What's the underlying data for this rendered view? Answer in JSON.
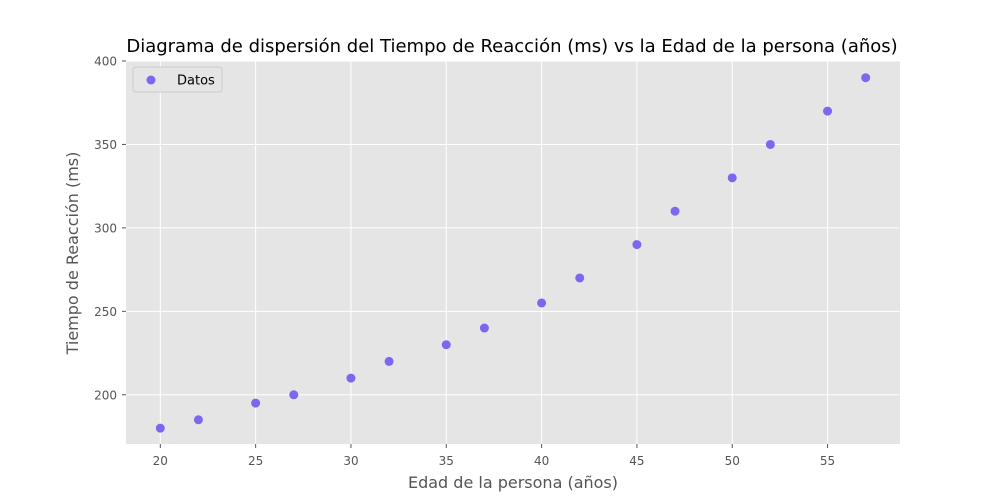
{
  "chart_data": {
    "type": "scatter",
    "title": "Diagrama de dispersión del Tiempo de Reacción (ms) vs la Edad de la persona (años)",
    "xlabel": "Edad de la persona (años)",
    "ylabel": "Tiempo de Reacción (ms)",
    "xlim": [
      18.2,
      58.8
    ],
    "ylim": [
      170.5,
      400
    ],
    "xticks": [
      20,
      25,
      30,
      35,
      40,
      45,
      50,
      55
    ],
    "yticks": [
      200,
      250,
      300,
      350,
      400
    ],
    "grid": true,
    "legend_position": "top-left",
    "series": [
      {
        "name": "Datos",
        "color": "#7B68EE",
        "points": [
          {
            "x": 20,
            "y": 180
          },
          {
            "x": 22,
            "y": 185
          },
          {
            "x": 25,
            "y": 195
          },
          {
            "x": 27,
            "y": 200
          },
          {
            "x": 30,
            "y": 210
          },
          {
            "x": 32,
            "y": 220
          },
          {
            "x": 35,
            "y": 230
          },
          {
            "x": 37,
            "y": 240
          },
          {
            "x": 40,
            "y": 255
          },
          {
            "x": 42,
            "y": 270
          },
          {
            "x": 45,
            "y": 290
          },
          {
            "x": 47,
            "y": 310
          },
          {
            "x": 50,
            "y": 330
          },
          {
            "x": 52,
            "y": 350
          },
          {
            "x": 55,
            "y": 370
          },
          {
            "x": 57,
            "y": 390
          }
        ]
      }
    ]
  },
  "colors": {
    "plot_background": "#E5E5E5",
    "grid": "#FFFFFF",
    "tick_text": "#555555"
  }
}
